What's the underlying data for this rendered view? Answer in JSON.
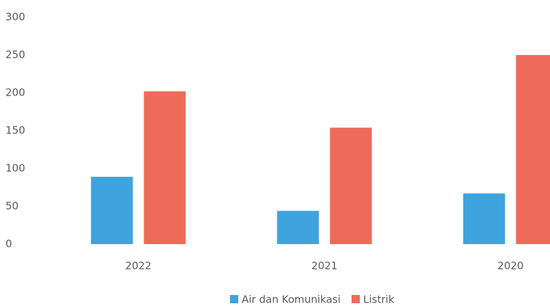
{
  "chart_data": {
    "type": "bar",
    "categories": [
      "2022",
      "2021",
      "2020"
    ],
    "series": [
      {
        "name": "Air dan Komunikasi",
        "color": "#3fa3dd",
        "values": [
          89,
          44,
          67
        ]
      },
      {
        "name": "Listrik",
        "color": "#ee6b5b",
        "values": [
          202,
          154,
          250
        ]
      }
    ],
    "ylim": [
      0,
      300
    ],
    "yticks": [
      0,
      50,
      100,
      150,
      200,
      250,
      300
    ],
    "grid": false,
    "legend": "bottom"
  }
}
